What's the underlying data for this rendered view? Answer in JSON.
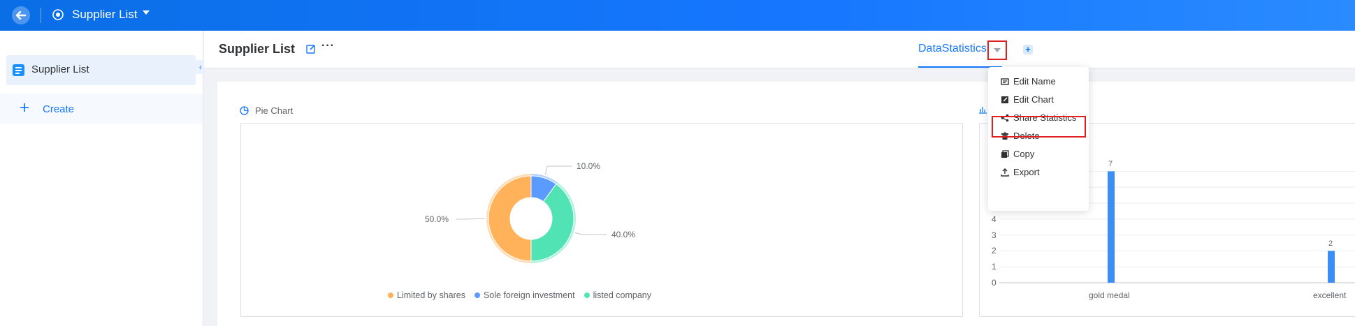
{
  "header": {
    "app_title": "Supplier List"
  },
  "sidebar": {
    "items": [
      {
        "label": "Supplier List"
      }
    ],
    "create_label": "Create"
  },
  "main": {
    "page_title": "Supplier List",
    "more_label": "···",
    "tabs": [
      {
        "label": "DataStatistics"
      }
    ]
  },
  "menu": {
    "items": [
      {
        "label": "Edit Name",
        "icon": "edit-name-icon"
      },
      {
        "label": "Edit Chart",
        "icon": "edit-chart-icon"
      },
      {
        "label": "Share Statistics",
        "icon": "share-icon"
      },
      {
        "label": "Delete",
        "icon": "trash-icon"
      },
      {
        "label": "Copy",
        "icon": "copy-icon"
      },
      {
        "label": "Export",
        "icon": "export-icon"
      }
    ]
  },
  "pie_title": "Pie Chart",
  "chart_data": [
    {
      "type": "pie",
      "title": "Pie Chart",
      "slices": [
        {
          "name": "Limited by shares",
          "value": 50.0,
          "label": "50.0%",
          "color": "#ffb259"
        },
        {
          "name": "Sole foreign investment",
          "value": 10.0,
          "label": "10.0%",
          "color": "#5b9bff"
        },
        {
          "name": "listed company",
          "value": 40.0,
          "label": "40.0%",
          "color": "#52e3b5"
        }
      ],
      "donut": true,
      "legend_position": "bottom"
    },
    {
      "type": "bar",
      "categories": [
        "gold medal",
        "excellent"
      ],
      "values": [
        7,
        2
      ],
      "value_labels": [
        "7",
        "2"
      ],
      "y_ticks": [
        "0",
        "1",
        "2",
        "3",
        "4"
      ],
      "ylim": [
        0,
        7
      ],
      "grid": true
    }
  ],
  "colors": {
    "brand": "#1677ff",
    "highlight": "#e02020"
  }
}
